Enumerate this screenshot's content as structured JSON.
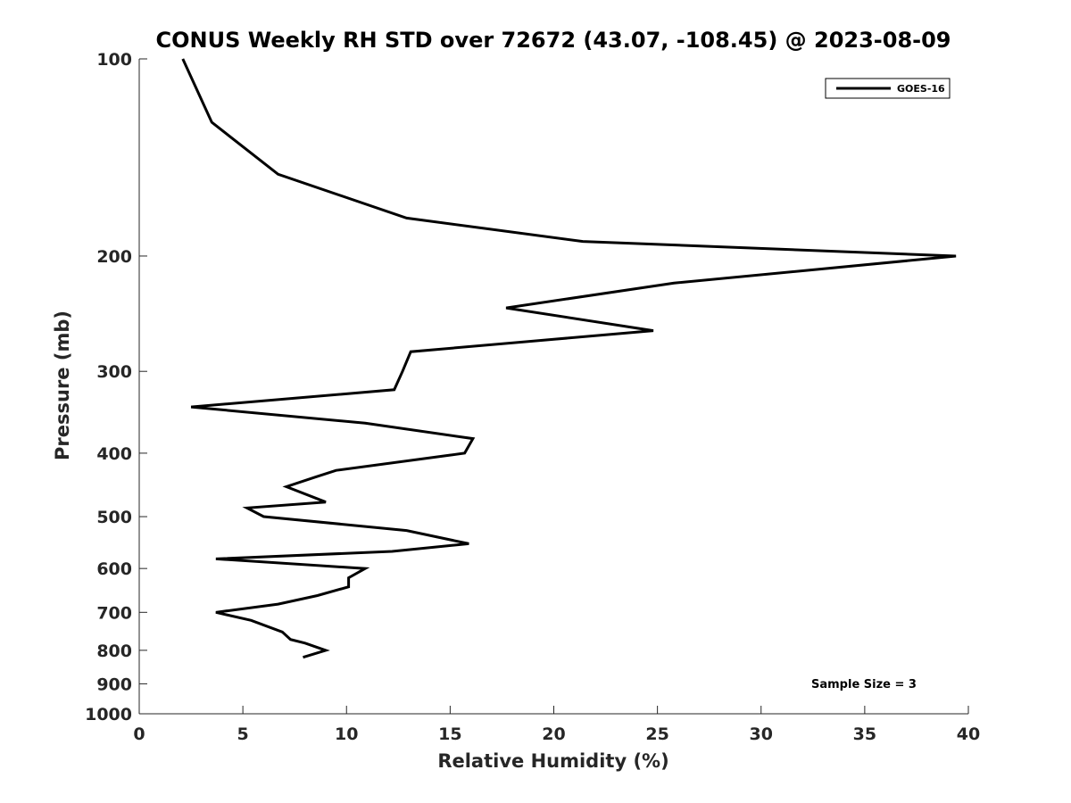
{
  "chart_data": {
    "type": "line",
    "title": "CONUS Weekly RH STD over 72672 (43.07, -108.45) @ 2023-08-09",
    "xlabel": "Relative Humidity (%)",
    "ylabel": "Pressure (mb)",
    "xlim": [
      0,
      40
    ],
    "ylim": [
      100,
      1000
    ],
    "yscale": "log",
    "yaxis_reversed": true,
    "grid": false,
    "xticks": [
      0,
      5,
      10,
      15,
      20,
      25,
      30,
      35,
      40
    ],
    "xtick_labels": [
      "0",
      "5",
      "10",
      "15",
      "20",
      "25",
      "30",
      "35",
      "40"
    ],
    "yticks": [
      100,
      200,
      300,
      400,
      500,
      600,
      700,
      800,
      900,
      1000
    ],
    "ytick_labels": [
      "100",
      "200",
      "300",
      "400",
      "500",
      "600",
      "700",
      "800",
      "900",
      "1000"
    ],
    "legend_position": "top-right",
    "series": [
      {
        "name": "GOES-16",
        "color": "#000000",
        "x": [
          2.1,
          3.5,
          6.7,
          12.9,
          21.4,
          39.4,
          25.8,
          17.7,
          24.8,
          13.1,
          12.7,
          12.3,
          2.5,
          10.9,
          16.1,
          15.7,
          9.5,
          8.5,
          7.1,
          9.0,
          5.2,
          6.0,
          12.9,
          15.9,
          12.2,
          3.7,
          10.9,
          10.1,
          10.1,
          8.6,
          6.7,
          3.7,
          5.4,
          6.9,
          7.3,
          8.0,
          9.0,
          7.9
        ],
        "y": [
          100,
          125,
          150,
          175,
          190,
          200,
          220,
          240,
          260,
          280,
          300,
          320,
          340,
          360,
          380,
          400,
          425,
          435,
          450,
          475,
          485,
          500,
          525,
          550,
          565,
          580,
          600,
          620,
          640,
          660,
          680,
          700,
          720,
          750,
          770,
          780,
          800,
          820
        ]
      }
    ],
    "annotations": [
      "Sample Size = 3"
    ]
  }
}
